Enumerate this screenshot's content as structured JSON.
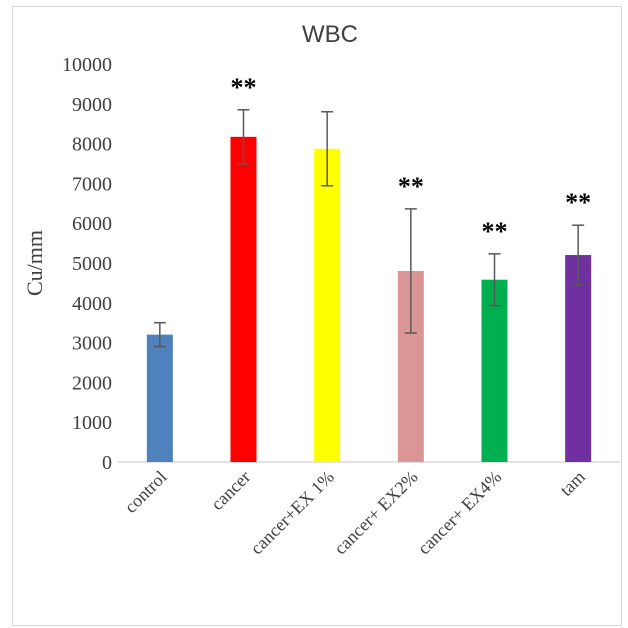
{
  "chart_data": {
    "type": "bar",
    "title": "WBC",
    "xlabel": "",
    "ylabel": "Cu/mm",
    "ylim": [
      0,
      10000
    ],
    "yticks": [
      0,
      1000,
      2000,
      3000,
      4000,
      5000,
      6000,
      7000,
      8000,
      9000,
      10000
    ],
    "categories": [
      "control",
      "cancer",
      "cancer+EX 1%",
      "cancer+ EX2%",
      "cancer+ EX4%",
      "tam"
    ],
    "values": [
      3200,
      8170,
      7870,
      4800,
      4580,
      5200
    ],
    "error": [
      300,
      680,
      930,
      1560,
      650,
      750
    ],
    "significance": [
      "",
      "**",
      "",
      "**",
      "**",
      "**"
    ],
    "colors": [
      "#4f81bd",
      "#ff0000",
      "#ffff00",
      "#d99694",
      "#00b050",
      "#7030a0"
    ],
    "grid": false,
    "legend": "none"
  }
}
